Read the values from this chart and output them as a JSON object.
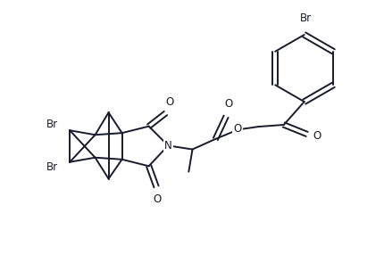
{
  "background_color": "#ffffff",
  "line_color": "#1a1a2e",
  "label_color": "#1a1a2e",
  "line_width": 1.4,
  "font_size": 8.5,
  "figsize": [
    4.31,
    2.95
  ],
  "dpi": 100,
  "xlim": [
    0,
    10
  ],
  "ylim": [
    0,
    7
  ]
}
